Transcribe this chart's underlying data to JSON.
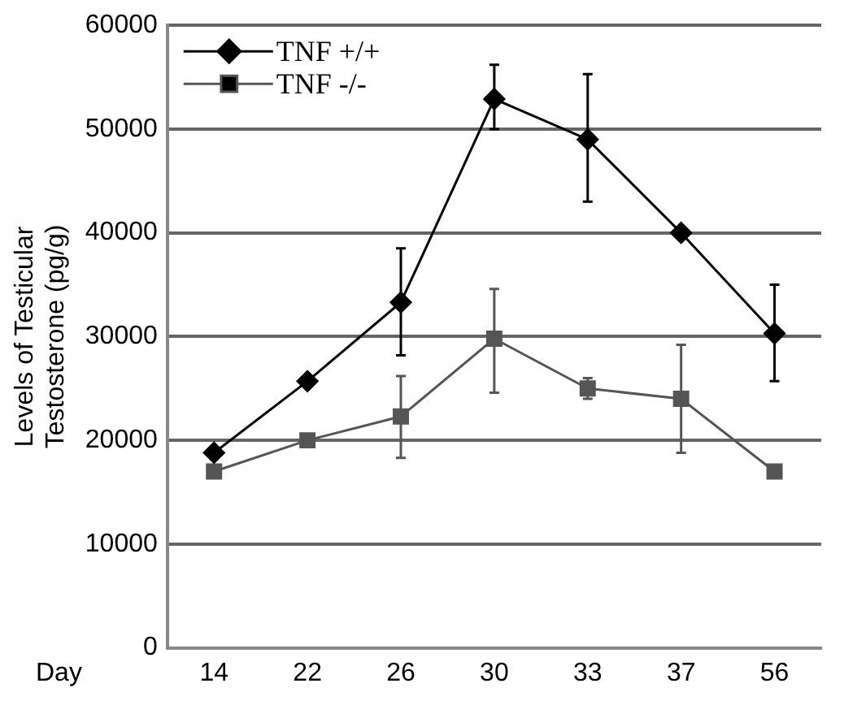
{
  "chart_data": {
    "type": "line",
    "xlabel": "Day",
    "ylabel": "Levels of Testicular Testosterone (pg/g)",
    "categories": [
      "14",
      "22",
      "26",
      "30",
      "33",
      "37",
      "56"
    ],
    "series": [
      {
        "name": "TNF +/+",
        "color": "#000000",
        "marker": "diamond",
        "values": [
          18800,
          25700,
          33300,
          52900,
          49000,
          40000,
          30300
        ],
        "errors": [
          null,
          null,
          [
            28200,
            38500
          ],
          [
            50000,
            56200
          ],
          [
            43000,
            55300
          ],
          null,
          [
            25700,
            35000
          ]
        ]
      },
      {
        "name": "TNF -/-",
        "color": "#555555",
        "marker": "square",
        "values": [
          17000,
          20000,
          22300,
          29800,
          25000,
          24000,
          17000
        ],
        "errors": [
          null,
          null,
          [
            18300,
            26200
          ],
          [
            24600,
            34600
          ],
          [
            24000,
            26000
          ],
          [
            18800,
            29200
          ],
          null
        ]
      }
    ],
    "ylim": [
      0,
      60000
    ],
    "yticks": [
      0,
      10000,
      20000,
      30000,
      40000,
      50000,
      60000
    ],
    "grid": "y",
    "legend": "top left",
    "line_style": "solid"
  }
}
